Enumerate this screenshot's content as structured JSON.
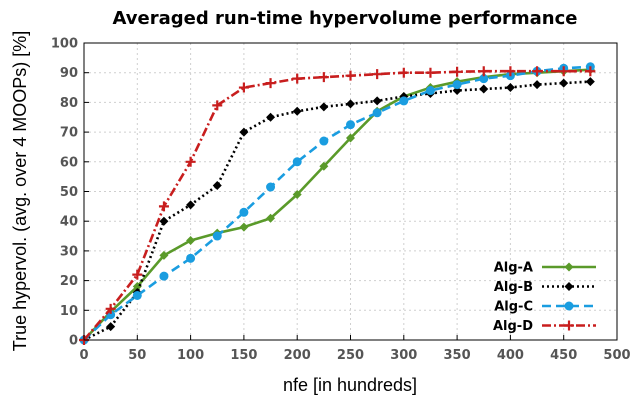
{
  "chart_data": {
    "type": "line",
    "title": "Averaged run-time hypervolume performance",
    "xlabel": "nfe [in hundreds]",
    "ylabel": "True hypervol. (avg. over 4 MOOPs) [%]",
    "xlim": [
      0,
      500
    ],
    "ylim": [
      0,
      100
    ],
    "xticks": [
      0,
      50,
      100,
      150,
      200,
      250,
      300,
      350,
      400,
      450,
      500
    ],
    "yticks": [
      0,
      10,
      20,
      30,
      40,
      50,
      60,
      70,
      80,
      90,
      100
    ],
    "grid": true,
    "legend_position": "bottom-right",
    "series": [
      {
        "name": "Alg-A",
        "color": "#5a9a2a",
        "marker": "diamond",
        "dash": "solid",
        "x": [
          0,
          25,
          50,
          75,
          100,
          125,
          150,
          175,
          200,
          225,
          250,
          275,
          300,
          325,
          350,
          375,
          400,
          425,
          450,
          475
        ],
        "y": [
          0,
          9.5,
          18,
          28.5,
          33.5,
          36,
          38,
          41,
          49,
          58.5,
          68,
          77,
          82,
          85,
          87,
          88.5,
          89.5,
          90,
          90.5,
          91
        ]
      },
      {
        "name": "Alg-B",
        "color": "#000000",
        "marker": "diamond",
        "dash": "dotted",
        "x": [
          0,
          25,
          50,
          75,
          100,
          125,
          150,
          175,
          200,
          225,
          250,
          275,
          300,
          325,
          350,
          375,
          400,
          425,
          450,
          475
        ],
        "y": [
          0,
          4.5,
          16,
          40,
          45.5,
          52,
          70,
          75,
          77,
          78.5,
          79.5,
          80.5,
          82,
          83,
          84,
          84.5,
          85,
          86,
          86.5,
          87
        ]
      },
      {
        "name": "Alg-C",
        "color": "#1a9de0",
        "marker": "circle",
        "dash": "dashed",
        "x": [
          0,
          25,
          50,
          75,
          100,
          125,
          150,
          175,
          200,
          225,
          250,
          275,
          300,
          325,
          350,
          375,
          400,
          425,
          450,
          475
        ],
        "y": [
          0,
          8.5,
          15,
          21.5,
          27.5,
          35,
          43,
          51.5,
          60,
          67,
          72.5,
          76.5,
          80.5,
          84,
          86,
          88,
          89,
          90.5,
          91.5,
          92
        ]
      },
      {
        "name": "Alg-D",
        "color": "#c81e1e",
        "marker": "plus",
        "dash": "dashdot",
        "x": [
          0,
          25,
          50,
          75,
          100,
          125,
          150,
          175,
          200,
          225,
          250,
          275,
          300,
          325,
          350,
          375,
          400,
          425,
          450,
          475
        ],
        "y": [
          0,
          10.5,
          22,
          45,
          60,
          79,
          85,
          86.5,
          88,
          88.5,
          89,
          89.5,
          90,
          90,
          90.3,
          90.5,
          90.5,
          90.5,
          90.5,
          90.5
        ]
      }
    ]
  }
}
